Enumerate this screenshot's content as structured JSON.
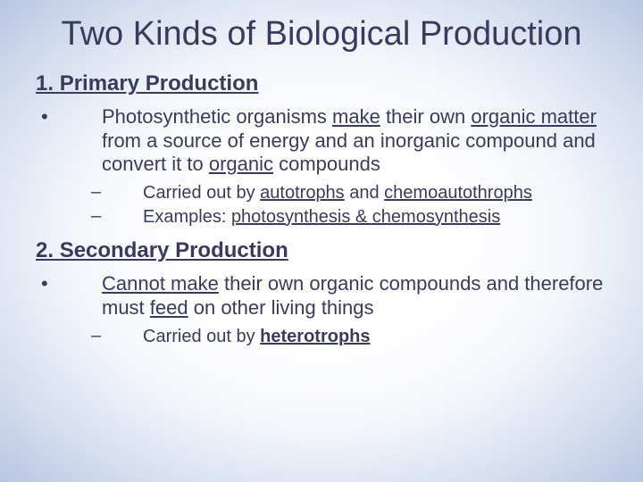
{
  "colors": {
    "text": "#3a3b5c",
    "bg_center": "#ffffff",
    "bg_edge": "#b8c6e2"
  },
  "title": "Two Kinds of Biological Production",
  "sections": [
    {
      "num": "1.",
      "heading": "Primary Production",
      "bullet": {
        "pre": "Photosynthetic organisms ",
        "u1": "make",
        "mid1": " their own ",
        "u2": "organic matter",
        "mid2": " from a source of energy and an inorganic compound and convert it to ",
        "u3": "organic",
        "post": " compounds"
      },
      "subs": [
        {
          "pre": "Carried out by ",
          "u1": "autotrophs",
          "mid": " and ",
          "u2": "chemoautothrophs",
          "post": ""
        },
        {
          "pre": "Examples: ",
          "u1": "photosynthesis & chemosynthesis",
          "mid": "",
          "u2": "",
          "post": ""
        }
      ]
    },
    {
      "num": "2.",
      "heading": "Secondary Production",
      "bullet": {
        "pre": "",
        "u1": "Cannot make",
        "mid1": " their own organic compounds and therefore must ",
        "u2": "feed",
        "mid2": " on other living things",
        "u3": "",
        "post": ""
      },
      "subs": [
        {
          "pre": "Carried out by ",
          "u1": "heterotrophs",
          "mid": "",
          "u2": "",
          "post": ""
        }
      ]
    }
  ]
}
